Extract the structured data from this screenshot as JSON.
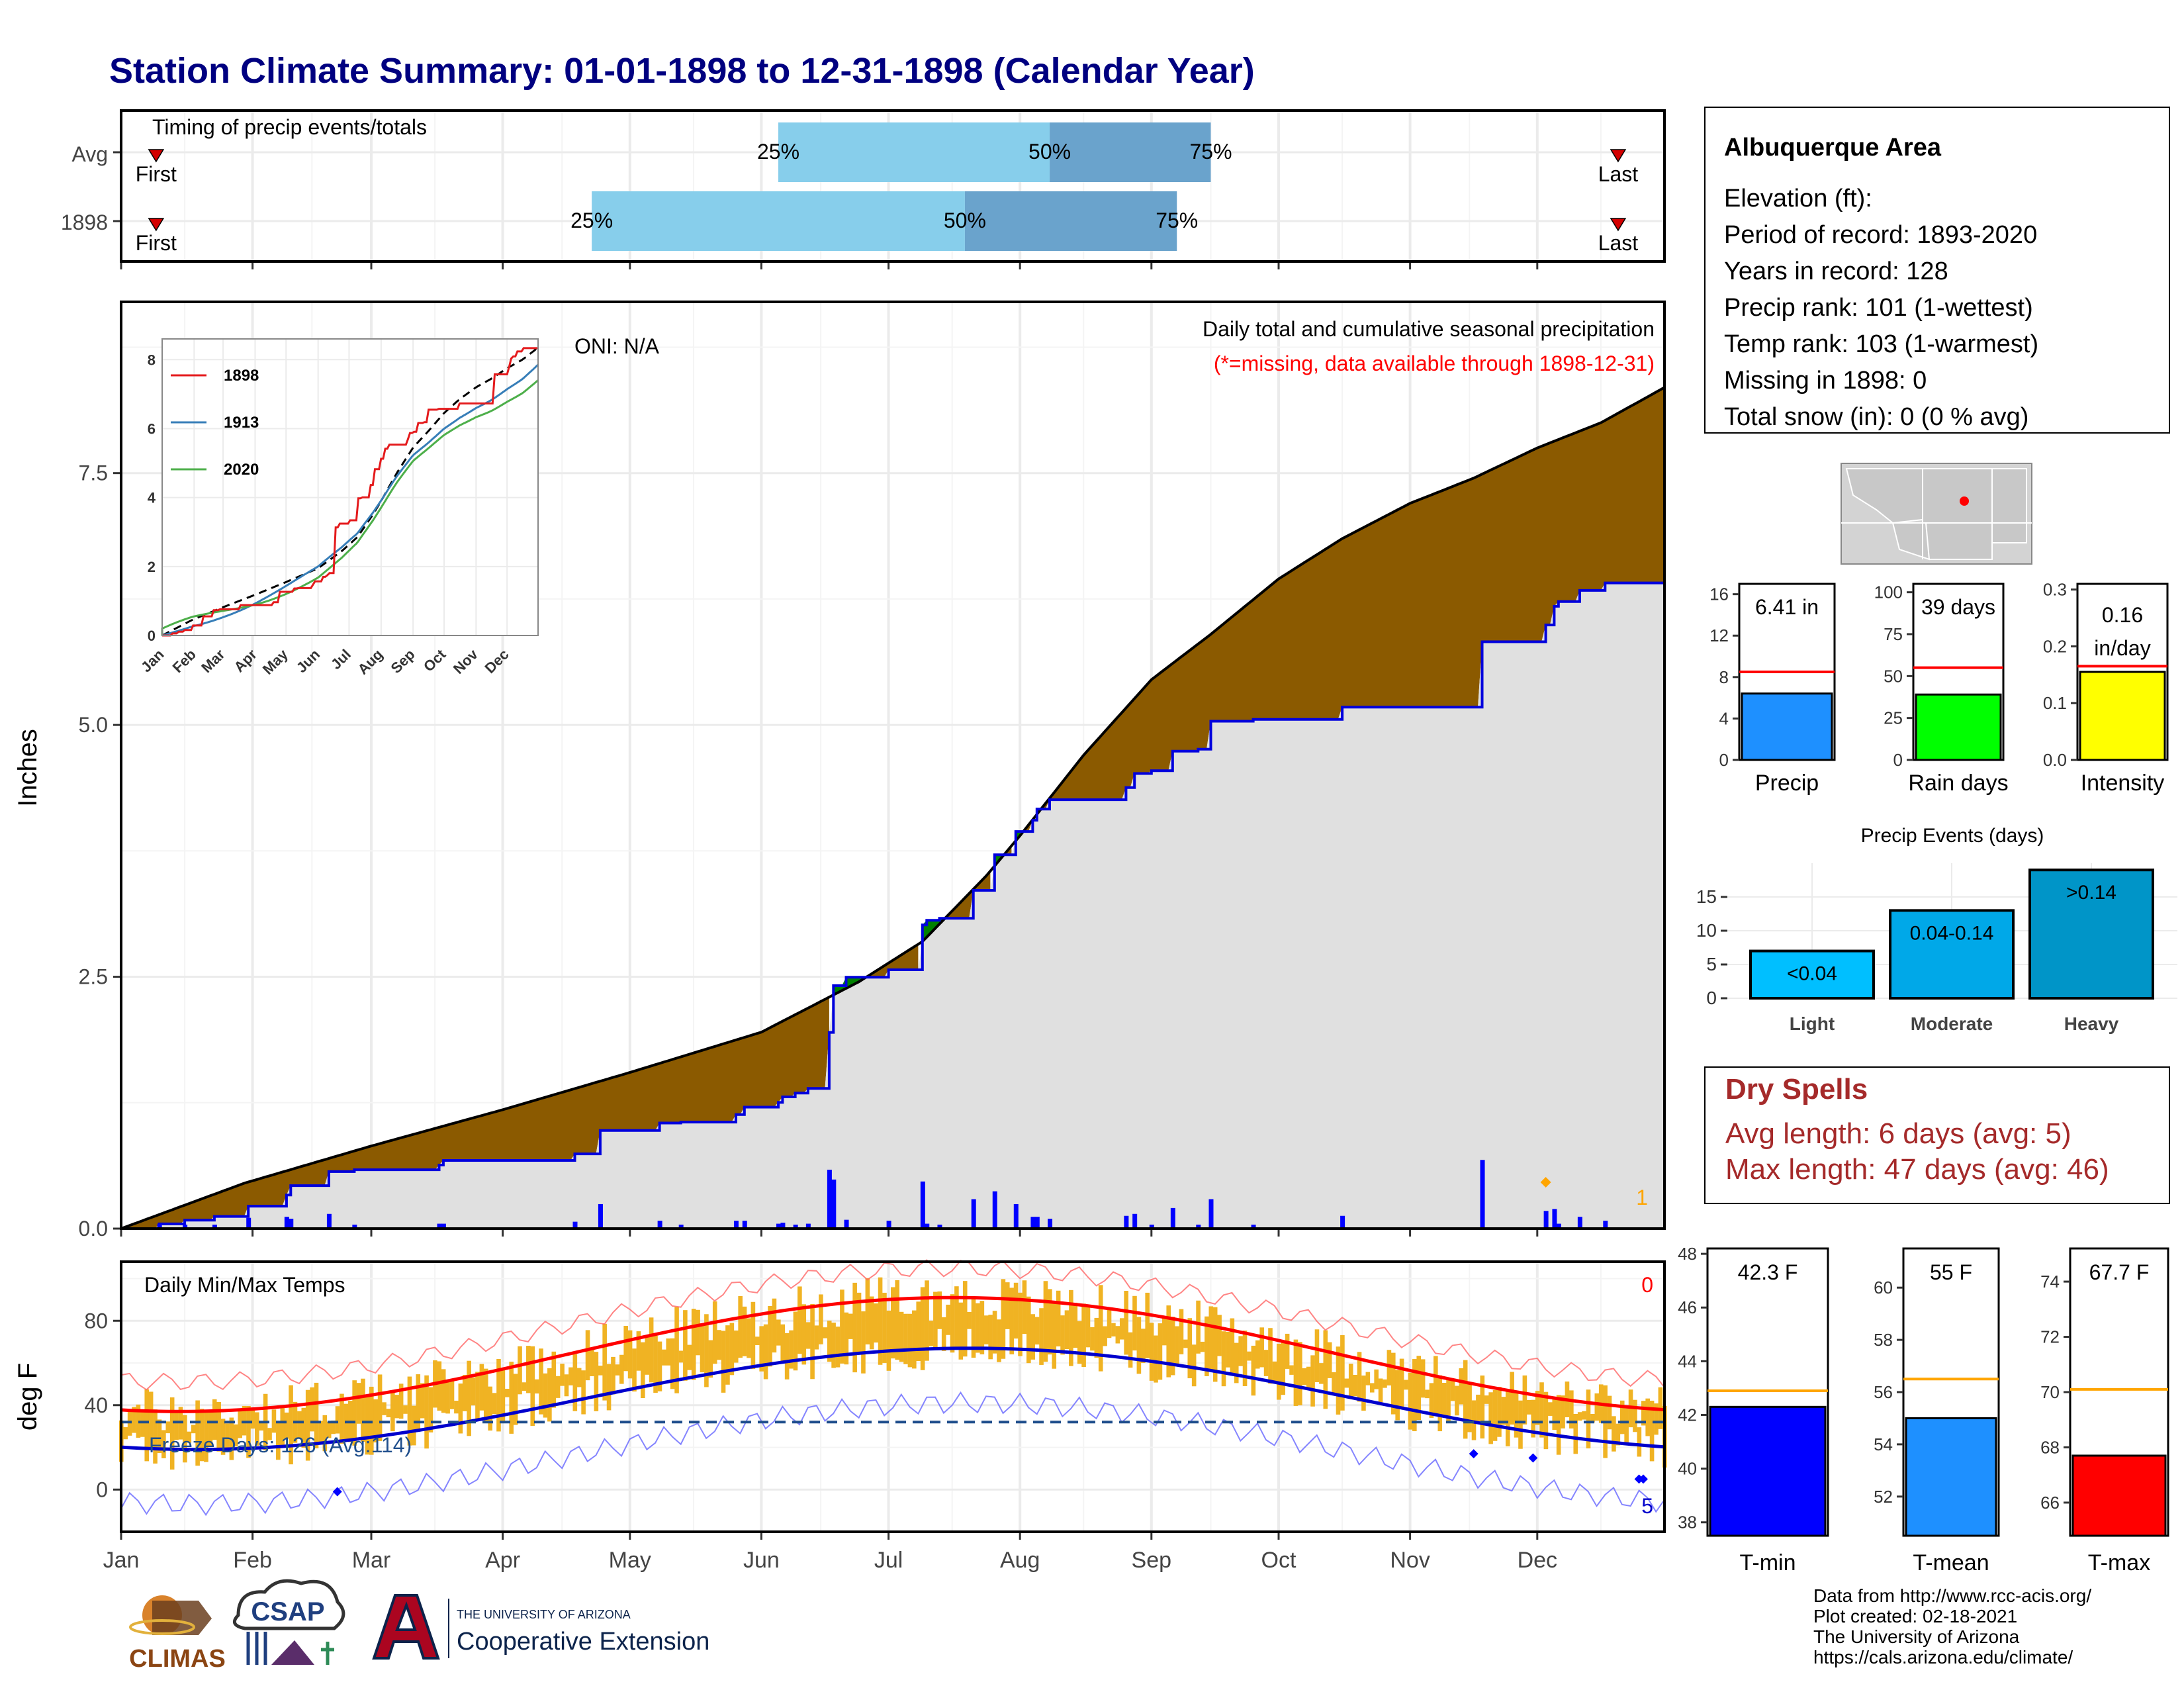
{
  "title": "Station Climate Summary: 01-01-1898 to 12-31-1898 (Calendar Year)",
  "months": [
    "Jan",
    "Feb",
    "Mar",
    "Apr",
    "May",
    "Jun",
    "Jul",
    "Aug",
    "Sep",
    "Oct",
    "Nov",
    "Dec"
  ],
  "timing": {
    "title": "Timing of precip events/totals",
    "rows": [
      {
        "label": "Avg",
        "first_label": "First",
        "last_label": "Last",
        "p25": "25%",
        "p50": "50%",
        "p75": "75%",
        "first_doy": 8,
        "p25_doy": 156,
        "p50_doy": 220,
        "p75_doy": 258,
        "last_doy": 355
      },
      {
        "label": "1898",
        "first_label": "First",
        "last_label": "Last",
        "p25": "25%",
        "p50": "50%",
        "p75": "75%",
        "first_doy": 8,
        "p25_doy": 112,
        "p50_doy": 200,
        "p75_doy": 250,
        "last_doy": 355
      }
    ],
    "colors": {
      "light": "#87ceeb",
      "dark": "#6aa3cc",
      "marker": "#d40000"
    }
  },
  "precip": {
    "ylabel": "Inches",
    "oni": "ONI: N/A",
    "title": "Daily total and cumulative seasonal precipitation",
    "missing_note": "(*=missing, data available through 1898-12-31)",
    "corner_count": "1",
    "yticks": [
      0.0,
      2.5,
      5.0,
      7.5
    ],
    "ytick_labels": [
      "0.0",
      "2.5",
      "5.0",
      "7.5"
    ],
    "ylim": [
      0,
      9.2
    ],
    "colors": {
      "above": "#008000",
      "below": "#8b5a00",
      "area": "#e0e0e0",
      "obs": "#0000dd",
      "avg": "#000000",
      "bars": "#0000ff",
      "missing": "#ffa500"
    }
  },
  "inset": {
    "yticks": [
      "0",
      "2",
      "4",
      "6",
      "8"
    ],
    "months": [
      "Jan",
      "Feb",
      "Mar",
      "Apr",
      "May",
      "Jun",
      "Jul",
      "Aug",
      "Sep",
      "Oct",
      "Nov",
      "Dec"
    ],
    "legend": [
      {
        "name": "1898",
        "color": "#e41a1c"
      },
      {
        "name": "1913",
        "color": "#377eb8"
      },
      {
        "name": "2020",
        "color": "#4daf4a"
      }
    ]
  },
  "temps": {
    "ylabel": "deg F",
    "title": "Daily Min/Max Temps",
    "freeze_label": "Freeze Days: 126 (Avg:114)",
    "top_count": "0",
    "bottom_count": "5",
    "yticks": [
      "0",
      "40",
      "80"
    ],
    "ylim": [
      -20,
      108
    ],
    "colors": {
      "bars": "#f0b323",
      "max_avg": "#ff0000",
      "min_avg": "#0000cc",
      "freeze": "#1f4e8c"
    }
  },
  "station": {
    "name": "Albuquerque Area",
    "lines": [
      "Elevation (ft):",
      "Period of record: 1893-2020",
      "Years in record: 128",
      "Precip rank: 101 (1-wettest)",
      "Temp rank: 103 (1-warmest)",
      "Missing in 1898: 0",
      "Total snow (in): 0 (0 % avg)"
    ]
  },
  "summary_bars": [
    {
      "name": "Precip",
      "label": "6.41 in",
      "value": 6.41,
      "avg": 8.5,
      "ymax": 17,
      "ticks": [
        "0",
        "4",
        "8",
        "12",
        "16"
      ],
      "color": "#1e90ff"
    },
    {
      "name": "Rain days",
      "label": "39 days",
      "value": 39,
      "avg": 55,
      "ymax": 105,
      "ticks": [
        "0",
        "25",
        "50",
        "75",
        "100"
      ],
      "color": "#00ff00"
    },
    {
      "name": "Intensity",
      "label": "0.16 in/day",
      "label_l1": "0.16",
      "label_l2": "in/day",
      "value": 0.155,
      "avg": 0.165,
      "ymax": 0.31,
      "ticks": [
        "0.0",
        "0.1",
        "0.2",
        "0.3"
      ],
      "color": "#ffff00"
    }
  ],
  "events": {
    "title": "Precip Events (days)",
    "categories": [
      "Light",
      "Moderate",
      "Heavy"
    ],
    "labels": [
      "<0.04",
      "0.04-0.14",
      ">0.14"
    ],
    "values": [
      7,
      13,
      19
    ],
    "ticks": [
      "0",
      "5",
      "10",
      "15"
    ],
    "colors": [
      "#00bfff",
      "#00a8e8",
      "#0095c8"
    ]
  },
  "dry_spells": {
    "title": "Dry Spells",
    "avg_line": "Avg length: 6 days (avg: 5)",
    "max_line": "Max length: 47 days (avg: 46)"
  },
  "temp_bars": [
    {
      "name": "T-min",
      "label": "42.3 F",
      "value": 42.3,
      "avg": 42.9,
      "ymin": 37.5,
      "ymax": 48.2,
      "ticks": [
        38,
        40,
        42,
        44,
        46,
        48
      ],
      "color": "#0000ff"
    },
    {
      "name": "T-mean",
      "label": "55 F",
      "value": 55,
      "avg": 56.5,
      "ymin": 50.5,
      "ymax": 61.5,
      "ticks": [
        52,
        54,
        56,
        58,
        60
      ],
      "color": "#1e90ff"
    },
    {
      "name": "T-max",
      "label": "67.7 F",
      "value": 67.7,
      "avg": 70.1,
      "ymin": 64.8,
      "ymax": 75.2,
      "ticks": [
        66,
        68,
        70,
        72,
        74
      ],
      "color": "#ff0000"
    }
  ],
  "footer": {
    "lines": [
      "Data from http://www.rcc-acis.org/",
      "Plot created: 02-18-2021",
      "The University of Arizona",
      "https://cals.arizona.edu/climate/"
    ],
    "climas": "CLIMAS",
    "csap": "CSAP",
    "ua_small": "THE UNIVERSITY OF ARIZONA",
    "ua_big": "Cooperative Extension"
  }
}
